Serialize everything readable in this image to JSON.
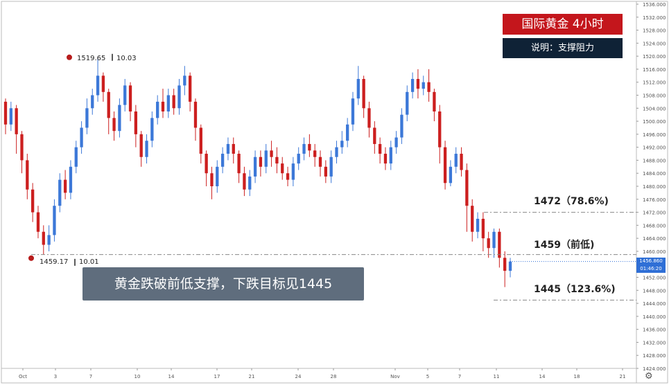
{
  "header": {
    "title": "国际黄金 4小时",
    "subtitle": "说明：支撑阻力"
  },
  "callout_text": "黄金跌破前低支撑，下跌目标见1445",
  "levels": [
    {
      "price": 1472,
      "label": "1472（78.6%)"
    },
    {
      "price": 1459,
      "label": "1459（前低)"
    },
    {
      "price": 1445,
      "label": "1445（123.6%)"
    }
  ],
  "current_price": "1456.860",
  "countdown": "01:46:20",
  "colors": {
    "up": "#3c78d8",
    "down": "#cc1f1f",
    "marker": "#b71c1c",
    "price_tag": "#2f6fd6"
  },
  "settings_icon": "gear-icon",
  "chart_data": {
    "type": "candlestick",
    "ylim": [
      1424,
      1536
    ],
    "y_ticks": [
      "1424.000",
      "1428.000",
      "1432.000",
      "1436.000",
      "1440.000",
      "1444.000",
      "1448.000",
      "1452.000",
      "1456.000",
      "1460.000",
      "1464.000",
      "1468.000",
      "1472.000",
      "1476.000",
      "1480.000",
      "1484.000",
      "1488.000",
      "1492.000",
      "1496.000",
      "1500.000",
      "1504.000",
      "1508.000",
      "1512.000",
      "1516.000",
      "1520.000",
      "1524.000",
      "1528.000",
      "1532.000",
      "1536.000"
    ],
    "x_ticks": [
      "Oct",
      "3",
      "7",
      "10",
      "14",
      "17",
      "21",
      "24",
      "28",
      "Nov",
      "5",
      "7",
      "11",
      "14",
      "18",
      "21"
    ],
    "annotations": [
      {
        "type": "high",
        "price": "1519.65",
        "value": "10.03"
      },
      {
        "type": "low",
        "price": "1459.17",
        "value": "10.01"
      }
    ],
    "candles": [
      [
        1506,
        1499,
        1507,
        1496
      ],
      [
        1499,
        1504,
        1506,
        1497
      ],
      [
        1504,
        1496,
        1505,
        1490
      ],
      [
        1496,
        1488,
        1497,
        1484
      ],
      [
        1488,
        1479,
        1490,
        1476
      ],
      [
        1479,
        1472,
        1481,
        1469
      ],
      [
        1472,
        1466,
        1474,
        1464
      ],
      [
        1466,
        1462,
        1468,
        1459
      ],
      [
        1462,
        1465,
        1468,
        1460
      ],
      [
        1465,
        1474,
        1476,
        1463
      ],
      [
        1474,
        1482,
        1484,
        1472
      ],
      [
        1482,
        1478,
        1485,
        1476
      ],
      [
        1478,
        1486,
        1488,
        1476
      ],
      [
        1486,
        1492,
        1494,
        1484
      ],
      [
        1492,
        1498,
        1500,
        1490
      ],
      [
        1498,
        1504,
        1507,
        1496
      ],
      [
        1504,
        1508,
        1510,
        1502
      ],
      [
        1508,
        1514,
        1519.65,
        1506
      ],
      [
        1514,
        1509,
        1515,
        1506
      ],
      [
        1509,
        1501,
        1510,
        1496
      ],
      [
        1501,
        1497,
        1503,
        1494
      ],
      [
        1497,
        1505,
        1507,
        1495
      ],
      [
        1505,
        1511,
        1513,
        1503
      ],
      [
        1511,
        1503,
        1512,
        1500
      ],
      [
        1503,
        1496,
        1505,
        1492
      ],
      [
        1496,
        1489,
        1497,
        1486
      ],
      [
        1489,
        1494,
        1496,
        1487
      ],
      [
        1494,
        1501,
        1503,
        1492
      ],
      [
        1501,
        1506,
        1508,
        1499
      ],
      [
        1506,
        1503,
        1510,
        1501
      ],
      [
        1503,
        1508,
        1510,
        1501
      ],
      [
        1508,
        1504,
        1510,
        1502
      ],
      [
        1504,
        1511,
        1513,
        1502
      ],
      [
        1511,
        1514,
        1517,
        1508
      ],
      [
        1514,
        1506,
        1515,
        1503
      ],
      [
        1506,
        1498,
        1507,
        1494
      ],
      [
        1498,
        1490,
        1499,
        1487
      ],
      [
        1490,
        1484,
        1491,
        1480
      ],
      [
        1484,
        1480,
        1486,
        1476
      ],
      [
        1480,
        1486,
        1488,
        1478
      ],
      [
        1486,
        1490,
        1492,
        1484
      ],
      [
        1490,
        1493,
        1495,
        1488
      ],
      [
        1493,
        1490,
        1495,
        1487
      ],
      [
        1490,
        1484,
        1491,
        1481
      ],
      [
        1484,
        1479,
        1486,
        1477
      ],
      [
        1479,
        1483,
        1485,
        1477
      ],
      [
        1483,
        1489,
        1491,
        1481
      ],
      [
        1489,
        1486,
        1491,
        1483
      ],
      [
        1486,
        1491,
        1493,
        1484
      ],
      [
        1491,
        1489,
        1494,
        1486
      ],
      [
        1489,
        1487,
        1492,
        1484
      ],
      [
        1487,
        1484,
        1489,
        1482
      ],
      [
        1484,
        1482,
        1486,
        1480
      ],
      [
        1482,
        1487,
        1489,
        1480
      ],
      [
        1487,
        1490,
        1492,
        1485
      ],
      [
        1490,
        1493,
        1495,
        1488
      ],
      [
        1493,
        1491,
        1496,
        1489
      ],
      [
        1491,
        1489,
        1493,
        1486
      ],
      [
        1489,
        1486,
        1491,
        1483
      ],
      [
        1486,
        1483,
        1488,
        1481
      ],
      [
        1483,
        1489,
        1491,
        1481
      ],
      [
        1489,
        1492,
        1494,
        1487
      ],
      [
        1492,
        1494,
        1497,
        1490
      ],
      [
        1494,
        1499,
        1501,
        1492
      ],
      [
        1499,
        1507,
        1509,
        1497
      ],
      [
        1507,
        1513,
        1517,
        1505
      ],
      [
        1513,
        1504,
        1514,
        1501
      ],
      [
        1504,
        1498,
        1506,
        1495
      ],
      [
        1498,
        1493,
        1500,
        1490
      ],
      [
        1493,
        1490,
        1495,
        1487
      ],
      [
        1490,
        1487,
        1492,
        1485
      ],
      [
        1487,
        1492,
        1494,
        1485
      ],
      [
        1492,
        1495,
        1497,
        1490
      ],
      [
        1495,
        1502,
        1504,
        1493
      ],
      [
        1502,
        1509,
        1511,
        1500
      ],
      [
        1509,
        1513,
        1515,
        1507
      ],
      [
        1513,
        1510,
        1516,
        1507
      ],
      [
        1510,
        1512,
        1514,
        1508
      ],
      [
        1512,
        1509,
        1516,
        1506
      ],
      [
        1509,
        1503,
        1510,
        1500
      ],
      [
        1503,
        1492,
        1505,
        1487
      ],
      [
        1492,
        1481,
        1494,
        1479
      ],
      [
        1481,
        1486,
        1488,
        1480
      ],
      [
        1486,
        1490,
        1492,
        1484
      ],
      [
        1490,
        1485,
        1492,
        1483
      ],
      [
        1485,
        1474,
        1487,
        1466
      ],
      [
        1474,
        1466,
        1476,
        1463
      ],
      [
        1466,
        1470,
        1472,
        1464
      ],
      [
        1470,
        1464,
        1472,
        1460
      ],
      [
        1464,
        1461,
        1466,
        1458
      ],
      [
        1461,
        1466,
        1467,
        1458
      ],
      [
        1466,
        1458,
        1467,
        1455
      ],
      [
        1458,
        1454,
        1460,
        1449
      ],
      [
        1454,
        1456.86,
        1458,
        1452
      ]
    ]
  }
}
